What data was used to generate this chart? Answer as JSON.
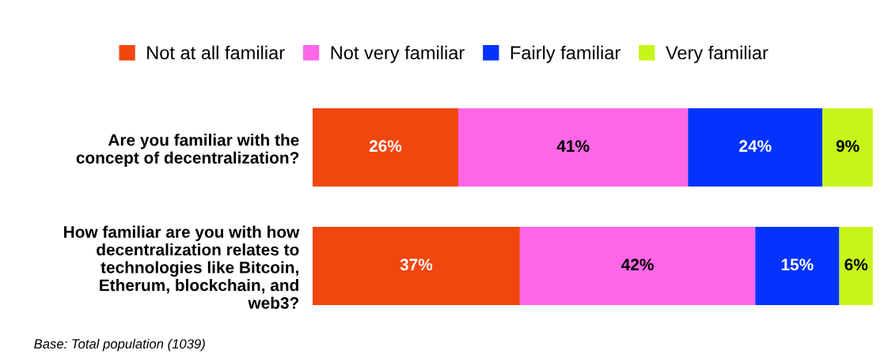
{
  "chart_data": {
    "type": "bar",
    "orientation": "horizontal",
    "stacked": true,
    "legend": "top",
    "grid": false,
    "categories": [
      "Are you familiar with the\nconcept of decentralization?",
      "How familiar are you with how\ndecentralization relates to\ntechnologies like Bitcoin,\nEtherum, blockchain, and\nweb3?"
    ],
    "series": [
      {
        "name": "Not at all familiar",
        "color": "#f2460f",
        "values": [
          26,
          37
        ],
        "value_labels": [
          "26%",
          "37%"
        ]
      },
      {
        "name": "Not very familiar",
        "color": "#ff66e8",
        "values": [
          41,
          42
        ],
        "value_labels": [
          "41%",
          "42%"
        ]
      },
      {
        "name": "Fairly familiar",
        "color": "#0433ff",
        "values": [
          24,
          15
        ],
        "value_labels": [
          "24%",
          "15%"
        ]
      },
      {
        "name": "Very familiar",
        "color": "#c6f51a",
        "values": [
          9,
          6
        ],
        "value_labels": [
          "9%",
          "6%"
        ]
      }
    ],
    "annotations": [
      "Base: Total population (1039)"
    ]
  }
}
